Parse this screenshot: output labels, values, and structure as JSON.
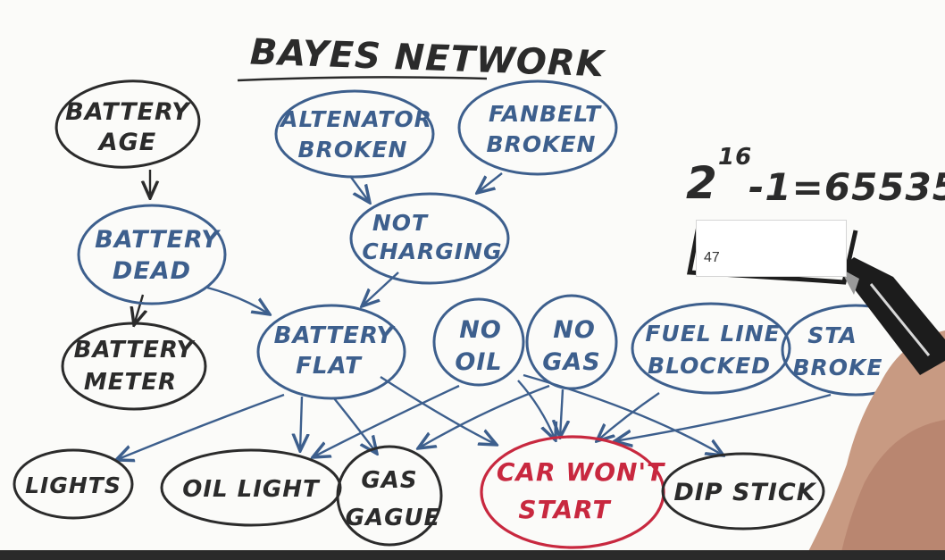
{
  "title": "BAYES NETWORK",
  "equation": {
    "base": "2",
    "exponent": "16",
    "rest": "-1=65535"
  },
  "answer_box": {
    "value": "47"
  },
  "nodes": {
    "battery_age": [
      "BATTERY",
      "AGE"
    ],
    "battery_dead": [
      "BATTERY",
      "DEAD"
    ],
    "battery_meter": [
      "BATTERY",
      "METER"
    ],
    "alternator_broken": [
      "ALTENATOR",
      "BROKEN"
    ],
    "fanbelt_broken": [
      "FANBELT",
      "BROKEN"
    ],
    "not_charging": [
      "NOT",
      "CHARGING"
    ],
    "battery_flat": [
      "BATTERY",
      "FLAT"
    ],
    "no_oil": [
      "NO",
      "OIL"
    ],
    "no_gas": [
      "NO",
      "GAS"
    ],
    "fuel_line_blocked": [
      "FUEL LINE",
      "BLOCKED"
    ],
    "starter_broken": [
      "STA",
      "BROKE"
    ],
    "lights": [
      "LIGHTS"
    ],
    "oil_light": [
      "OIL LIGHT"
    ],
    "gas_gauge": [
      "GAS",
      "GAGUE"
    ],
    "car_wont_start": [
      "CAR WON'T",
      "START"
    ],
    "dip_stick": [
      "DIP STICK"
    ]
  },
  "colors": {
    "ink_black": "#2b2b2b",
    "ink_blue": "#3d5f8d",
    "ink_red": "#c8283f",
    "paper": "#fbfbf9"
  }
}
